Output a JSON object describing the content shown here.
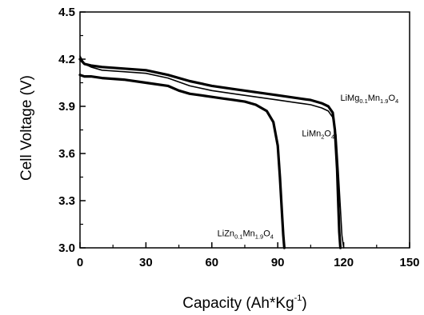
{
  "chart_data": {
    "type": "line",
    "title": "",
    "xlabel": {
      "text": "Capacity (Ah*Kg",
      "sup": "-1",
      "close": ")"
    },
    "ylabel": "Cell Voltage (V)",
    "xlim": [
      0,
      150
    ],
    "ylim": [
      3.0,
      4.5
    ],
    "xticks": [
      0,
      30,
      60,
      90,
      120,
      150
    ],
    "yticks": [
      3.0,
      3.3,
      3.6,
      3.9,
      4.2,
      4.5
    ],
    "xtick_labels": [
      "0",
      "30",
      "60",
      "90",
      "120",
      "150"
    ],
    "ytick_labels": [
      "3.0",
      "3.3",
      "3.6",
      "3.9",
      "4.2",
      "4.5"
    ],
    "grid": false,
    "legend": "none (labels placed next to curves)",
    "series": [
      {
        "name": "LiMg0.1Mn1.9O4",
        "label_parts": [
          [
            "LiMg",
            ""
          ],
          [
            "0.1",
            "sub"
          ],
          [
            "Mn",
            ""
          ],
          [
            "1.9",
            "sub"
          ],
          [
            "O",
            ""
          ],
          [
            "4",
            "sub"
          ]
        ],
        "line_weight": "heavy",
        "x": [
          0,
          2,
          5,
          10,
          20,
          30,
          40,
          50,
          60,
          70,
          80,
          90,
          100,
          105,
          110,
          113,
          115,
          116,
          117,
          117.5,
          118,
          118.5
        ],
        "y": [
          4.2,
          4.17,
          4.16,
          4.15,
          4.14,
          4.13,
          4.1,
          4.06,
          4.03,
          4.01,
          3.99,
          3.97,
          3.95,
          3.94,
          3.92,
          3.9,
          3.86,
          3.75,
          3.5,
          3.3,
          3.1,
          3.0
        ]
      },
      {
        "name": "LiMn2O4",
        "label_parts": [
          [
            "LiMn",
            ""
          ],
          [
            "2",
            "sub"
          ],
          [
            "O",
            ""
          ],
          [
            "4",
            "sub"
          ]
        ],
        "line_weight": "thin",
        "x": [
          0,
          2,
          5,
          10,
          20,
          30,
          40,
          50,
          60,
          70,
          80,
          90,
          100,
          105,
          110,
          113,
          115,
          116.5,
          117.5,
          118.5,
          119.2,
          120
        ],
        "y": [
          4.22,
          4.17,
          4.15,
          4.13,
          4.12,
          4.11,
          4.08,
          4.03,
          4.0,
          3.98,
          3.96,
          3.94,
          3.92,
          3.91,
          3.89,
          3.87,
          3.83,
          3.72,
          3.5,
          3.25,
          3.08,
          3.0
        ]
      },
      {
        "name": "LiZn0.1Mn1.9O4",
        "label_parts": [
          [
            "LiZn",
            ""
          ],
          [
            "0.1",
            "sub"
          ],
          [
            "Mn",
            ""
          ],
          [
            "1.9",
            "sub"
          ],
          [
            "O",
            ""
          ],
          [
            "4",
            "sub"
          ]
        ],
        "line_weight": "heavy",
        "x": [
          0,
          2,
          5,
          10,
          20,
          30,
          40,
          45,
          50,
          55,
          60,
          65,
          70,
          75,
          80,
          85,
          88,
          90,
          91,
          92,
          92.5,
          93
        ],
        "y": [
          4.1,
          4.09,
          4.09,
          4.08,
          4.07,
          4.05,
          4.03,
          4.0,
          3.98,
          3.97,
          3.96,
          3.95,
          3.94,
          3.93,
          3.91,
          3.87,
          3.8,
          3.65,
          3.45,
          3.2,
          3.08,
          3.0
        ]
      }
    ]
  }
}
